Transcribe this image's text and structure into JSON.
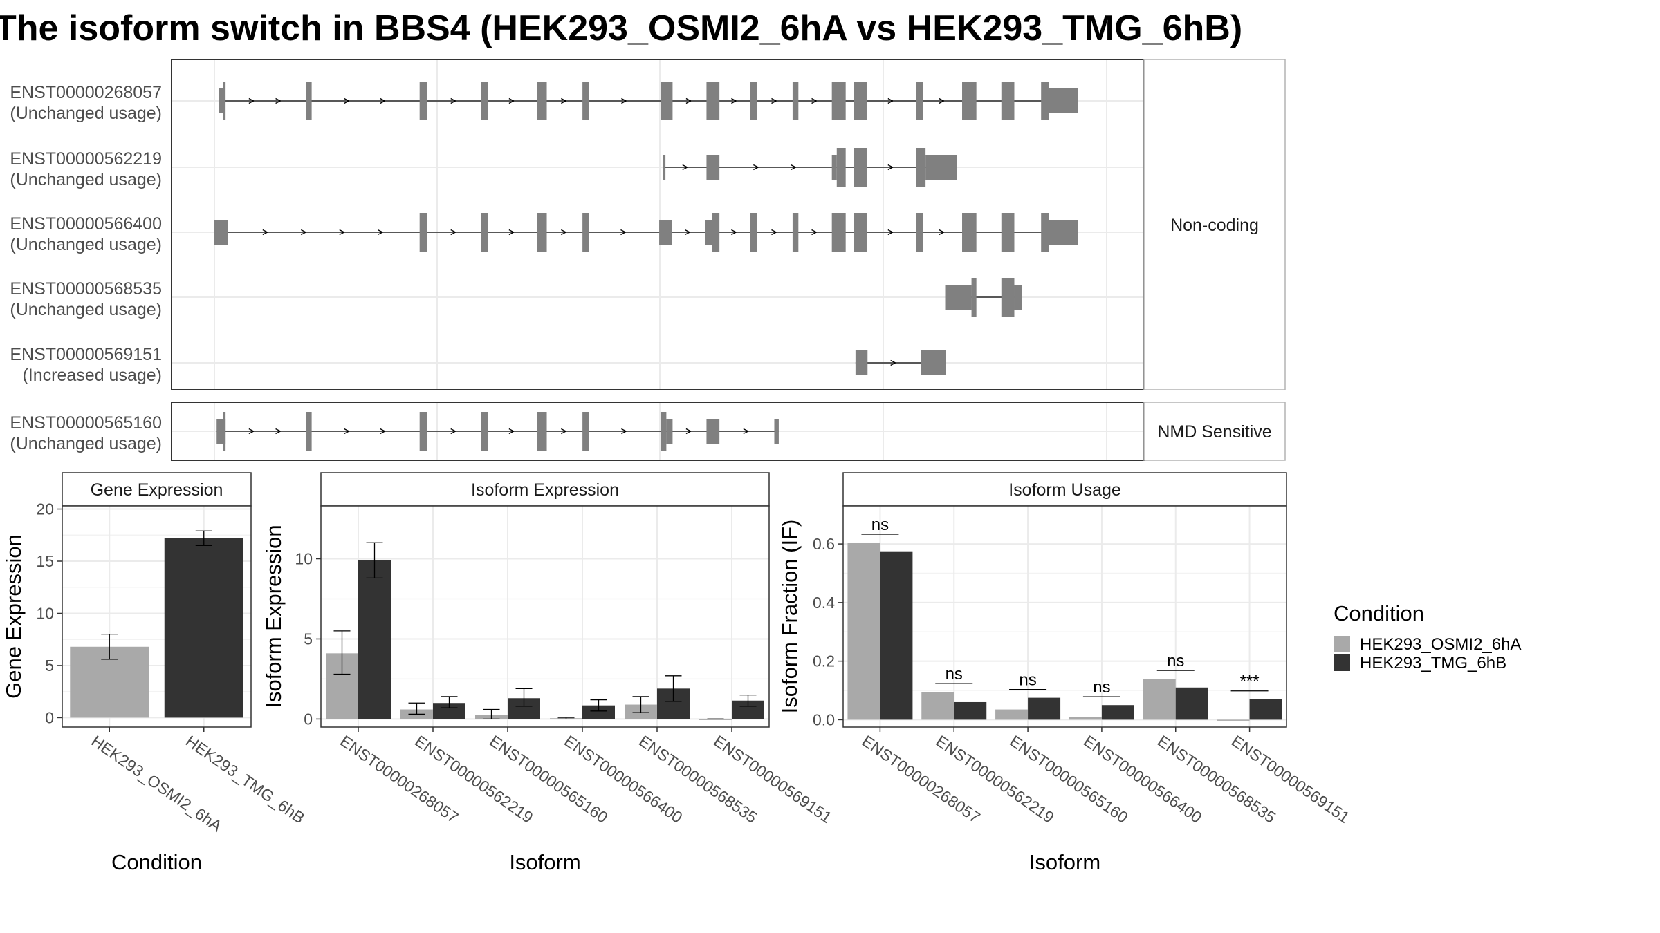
{
  "title": "The isoform switch in BBS4 (HEK293_OSMI2_6hA vs HEK293_TMG_6hB)",
  "colors": {
    "exon": "#808080",
    "cond_a": "#a9a9a9",
    "cond_b": "#333333",
    "grid": "#ebebeb",
    "panel_border": "#333333",
    "strip_bg": "#ffffff"
  },
  "chart_data": [
    {
      "type": "gene-structure",
      "genomic_range": [
        0,
        2000
      ],
      "groups": [
        {
          "label": "Non-coding",
          "transcripts": [
            {
              "id": "ENST00000268057",
              "usage": "(Unchanged usage)"
            },
            {
              "id": "ENST00000562219",
              "usage": "(Unchanged usage)"
            },
            {
              "id": "ENST00000566400",
              "usage": "(Unchanged usage)"
            },
            {
              "id": "ENST00000568535",
              "usage": "(Unchanged usage)"
            },
            {
              "id": "ENST00000569151",
              "usage": "(Increased usage)"
            }
          ]
        },
        {
          "label": "NMD Sensitive",
          "transcripts": [
            {
              "id": "ENST00000565160",
              "usage": "(Unchanged usage)"
            }
          ]
        }
      ]
    },
    {
      "type": "bar",
      "title": "Gene Expression",
      "xlabel": "Condition",
      "ylabel": "Gene Expression",
      "categories": [
        "HEK293_OSMI2_6hA",
        "HEK293_TMG_6hB"
      ],
      "values": [
        6.8,
        17.2
      ],
      "errors": [
        [
          5.6,
          8.0
        ],
        [
          16.5,
          17.9
        ]
      ],
      "yticks": [
        0,
        5,
        10,
        15,
        20
      ],
      "ylim": [
        -0.9,
        20.3
      ]
    },
    {
      "type": "bar",
      "title": "Isoform Expression",
      "xlabel": "Isoform",
      "ylabel": "Isoform Expression",
      "categories": [
        "ENST00000268057",
        "ENST00000562219",
        "ENST00000565160",
        "ENST00000566400",
        "ENST00000568535",
        "ENST00000569151"
      ],
      "series": [
        {
          "name": "HEK293_OSMI2_6hA",
          "values": [
            4.1,
            0.6,
            0.25,
            0.05,
            0.9,
            0.0
          ],
          "errors": [
            [
              2.8,
              5.5
            ],
            [
              0.3,
              1.0
            ],
            [
              0.0,
              0.6
            ],
            [
              0.0,
              0.1
            ],
            [
              0.4,
              1.4
            ],
            [
              0.0,
              0.0
            ]
          ]
        },
        {
          "name": "HEK293_TMG_6hB",
          "values": [
            9.9,
            1.0,
            1.3,
            0.85,
            1.9,
            1.15
          ],
          "errors": [
            [
              8.8,
              11.0
            ],
            [
              0.7,
              1.4
            ],
            [
              0.8,
              1.9
            ],
            [
              0.5,
              1.2
            ],
            [
              1.1,
              2.7
            ],
            [
              0.8,
              1.5
            ]
          ]
        }
      ],
      "yticks": [
        0,
        5,
        10
      ],
      "ylim": [
        -0.5,
        13.3
      ]
    },
    {
      "type": "bar",
      "title": "Isoform Usage",
      "xlabel": "Isoform",
      "ylabel": "Isoform Fraction (IF)",
      "categories": [
        "ENST00000268057",
        "ENST00000562219",
        "ENST00000565160",
        "ENST00000566400",
        "ENST00000568535",
        "ENST00000569151"
      ],
      "series": [
        {
          "name": "HEK293_OSMI2_6hA",
          "values": [
            0.605,
            0.095,
            0.035,
            0.01,
            0.14,
            0.0
          ]
        },
        {
          "name": "HEK293_TMG_6hB",
          "values": [
            0.575,
            0.06,
            0.075,
            0.05,
            0.11,
            0.07
          ]
        }
      ],
      "significance": [
        "ns",
        "ns",
        "ns",
        "ns",
        "ns",
        "***"
      ],
      "yticks": [
        "0.0",
        "0.2",
        "0.4",
        "0.6"
      ],
      "ylim": [
        -0.025,
        0.73
      ]
    }
  ],
  "legend": {
    "title": "Condition",
    "items": [
      "HEK293_OSMI2_6hA",
      "HEK293_TMG_6hB"
    ],
    "position": "right"
  }
}
